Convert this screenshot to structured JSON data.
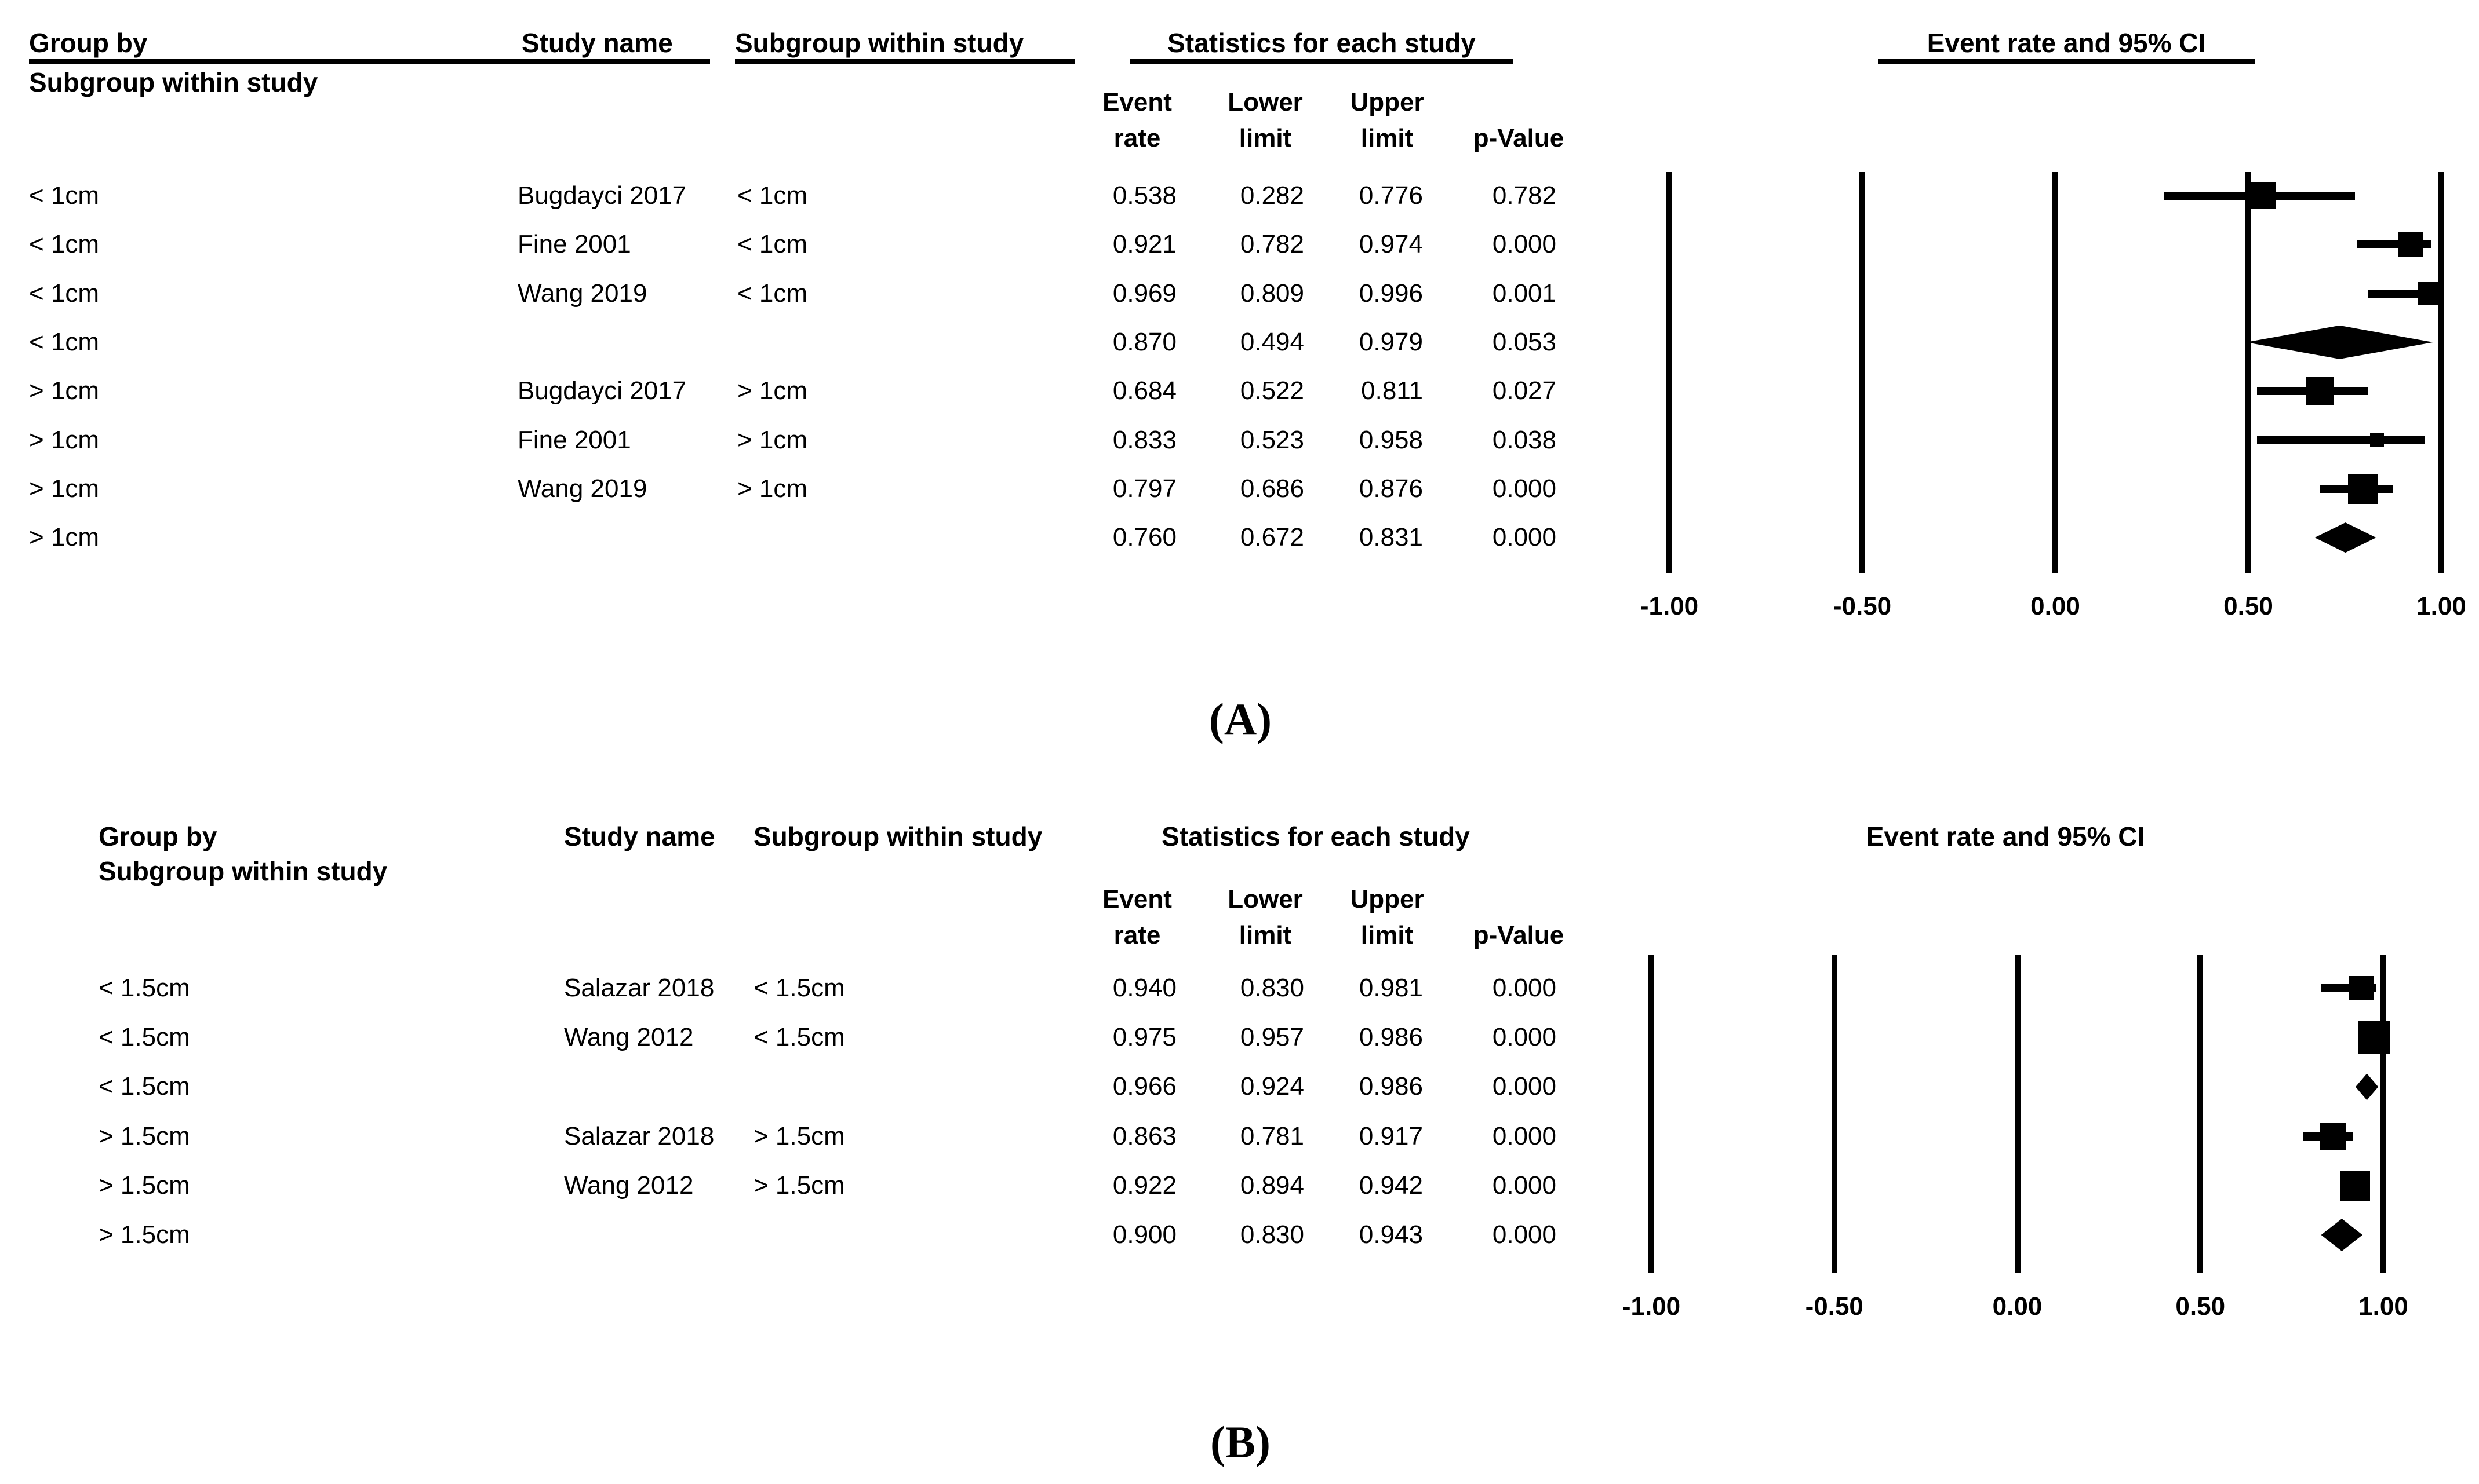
{
  "figure": {
    "background_color": "#ffffff",
    "ink_color": "#000000"
  },
  "chart_data": [
    {
      "type": "scatter",
      "variant": "forest-plot",
      "panel_label": "(A)",
      "headers": {
        "group_by_line1": "Group by",
        "group_by_line2": "Subgroup within study",
        "study_name": "Study name",
        "subgroup_within_study": "Subgroup within study",
        "statistics": "Statistics for each study",
        "plot_title": "Event rate and 95% CI",
        "stat_cols_line1": [
          "Event",
          "Lower",
          "Upper",
          ""
        ],
        "stat_cols_line2": [
          "rate",
          "limit",
          "limit",
          "p-Value"
        ],
        "underlined": true
      },
      "rows": [
        {
          "group": "< 1cm",
          "study": "Bugdayci 2017",
          "subgroup": "< 1cm",
          "event_rate": "0.538",
          "lower": "0.282",
          "upper": "0.776",
          "p_value": "0.782",
          "marker": "square",
          "size": 46
        },
        {
          "group": "< 1cm",
          "study": "Fine 2001",
          "subgroup": "< 1cm",
          "event_rate": "0.921",
          "lower": "0.782",
          "upper": "0.974",
          "p_value": "0.000",
          "marker": "square",
          "size": 44
        },
        {
          "group": "< 1cm",
          "study": "Wang 2019",
          "subgroup": "< 1cm",
          "event_rate": "0.969",
          "lower": "0.809",
          "upper": "0.996",
          "p_value": "0.001",
          "marker": "square",
          "size": 40
        },
        {
          "group": "< 1cm",
          "study": "",
          "subgroup": "",
          "event_rate": "0.870",
          "lower": "0.494",
          "upper": "0.979",
          "p_value": "0.053",
          "marker": "diamond",
          "size": 58
        },
        {
          "group": "> 1cm",
          "study": "Bugdayci 2017",
          "subgroup": "> 1cm",
          "event_rate": "0.684",
          "lower": "0.522",
          "upper": "0.811",
          "p_value": "0.027",
          "marker": "square",
          "size": 48
        },
        {
          "group": "> 1cm",
          "study": "Fine 2001",
          "subgroup": "> 1cm",
          "event_rate": "0.833",
          "lower": "0.523",
          "upper": "0.958",
          "p_value": "0.038",
          "marker": "square",
          "size": 24
        },
        {
          "group": "> 1cm",
          "study": "Wang 2019",
          "subgroup": "> 1cm",
          "event_rate": "0.797",
          "lower": "0.686",
          "upper": "0.876",
          "p_value": "0.000",
          "marker": "square",
          "size": 52
        },
        {
          "group": "> 1cm",
          "study": "",
          "subgroup": "",
          "event_rate": "0.760",
          "lower": "0.672",
          "upper": "0.831",
          "p_value": "0.000",
          "marker": "diamond",
          "size": 52
        }
      ],
      "axis": {
        "tick_labels": [
          "-1.00",
          "-0.50",
          "0.00",
          "0.50",
          "1.00"
        ],
        "tick_values": [
          -1,
          -0.5,
          0,
          0.5,
          1
        ]
      },
      "xlim": [
        -1,
        1
      ],
      "xlabel": "",
      "ylabel": "",
      "grid": "vertical-lines-at-ticks",
      "title": "Event rate and 95% CI"
    },
    {
      "type": "scatter",
      "variant": "forest-plot",
      "panel_label": "(B)",
      "headers": {
        "group_by_line1": "Group by",
        "group_by_line2": "Subgroup within study",
        "study_name": "Study name",
        "subgroup_within_study": "Subgroup within study",
        "statistics": "Statistics for each study",
        "plot_title": "Event rate and 95% CI",
        "stat_cols_line1": [
          "Event",
          "Lower",
          "Upper",
          ""
        ],
        "stat_cols_line2": [
          "rate",
          "limit",
          "limit",
          "p-Value"
        ],
        "underlined": false
      },
      "rows": [
        {
          "group": "< 1.5cm",
          "study": "Salazar 2018",
          "subgroup": "< 1.5cm",
          "event_rate": "0.940",
          "lower": "0.830",
          "upper": "0.981",
          "p_value": "0.000",
          "marker": "square",
          "size": 42
        },
        {
          "group": "< 1.5cm",
          "study": "Wang 2012",
          "subgroup": "< 1.5cm",
          "event_rate": "0.975",
          "lower": "0.957",
          "upper": "0.986",
          "p_value": "0.000",
          "marker": "square",
          "size": 56
        },
        {
          "group": "< 1.5cm",
          "study": "",
          "subgroup": "",
          "event_rate": "0.966",
          "lower": "0.924",
          "upper": "0.986",
          "p_value": "0.000",
          "marker": "diamond",
          "size": 46
        },
        {
          "group": "> 1.5cm",
          "study": "Salazar 2018",
          "subgroup": "> 1.5cm",
          "event_rate": "0.863",
          "lower": "0.781",
          "upper": "0.917",
          "p_value": "0.000",
          "marker": "square",
          "size": 46
        },
        {
          "group": "> 1.5cm",
          "study": "Wang 2012",
          "subgroup": "> 1.5cm",
          "event_rate": "0.922",
          "lower": "0.894",
          "upper": "0.942",
          "p_value": "0.000",
          "marker": "square",
          "size": 52
        },
        {
          "group": "> 1.5cm",
          "study": "",
          "subgroup": "",
          "event_rate": "0.900",
          "lower": "0.830",
          "upper": "0.943",
          "p_value": "0.000",
          "marker": "diamond",
          "size": 56
        }
      ],
      "axis": {
        "tick_labels": [
          "-1.00",
          "-0.50",
          "0.00",
          "0.50",
          "1.00"
        ],
        "tick_values": [
          -1,
          -0.5,
          0,
          0.5,
          1
        ]
      },
      "xlim": [
        -1,
        1
      ],
      "xlabel": "",
      "ylabel": "",
      "grid": "vertical-lines-at-ticks",
      "title": "Event rate and 95% CI"
    }
  ]
}
